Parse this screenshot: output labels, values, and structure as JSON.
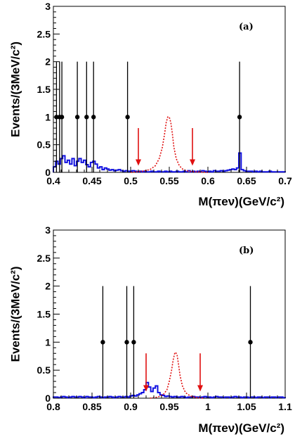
{
  "chart_data": [
    {
      "type": "histogram",
      "panel_label": "(a)",
      "xlabel": "M(πeν)(GeV/c²)",
      "ylabel": "Events/(3MeV/c²)",
      "xlim": [
        0.4,
        0.7
      ],
      "ylim": [
        0,
        3
      ],
      "x_ticks": [
        "0.4",
        "0.45",
        "0.5",
        "0.55",
        "0.6",
        "0.65",
        "0.7"
      ],
      "x_tick_values": [
        0.4,
        0.45,
        0.5,
        0.55,
        0.6,
        0.65,
        0.7
      ],
      "y_ticks": [
        "0",
        "0.5",
        "1",
        "1.5",
        "2",
        "2.5",
        "3"
      ],
      "y_tick_values": [
        0,
        0.5,
        1,
        1.5,
        2,
        2.5,
        3
      ],
      "data_points": {
        "x": [
          0.404,
          0.408,
          0.411,
          0.431,
          0.443,
          0.452,
          0.496,
          0.641
        ],
        "y": [
          1,
          1,
          1,
          1,
          1,
          1,
          1,
          1
        ],
        "err_lo": [
          1,
          1,
          1,
          1,
          1,
          1,
          1,
          1
        ],
        "err_hi": [
          1,
          1,
          1,
          1,
          1,
          1,
          1,
          1
        ]
      },
      "signal_mc": {
        "style": "red-dotted",
        "x": [
          0.5,
          0.515,
          0.525,
          0.532,
          0.537,
          0.541,
          0.544,
          0.546,
          0.548,
          0.55,
          0.552,
          0.554,
          0.556,
          0.559,
          0.563,
          0.568,
          0.575,
          0.585,
          0.6
        ],
        "y": [
          0.0,
          0.02,
          0.05,
          0.12,
          0.25,
          0.45,
          0.7,
          0.9,
          1.0,
          1.0,
          0.9,
          0.7,
          0.45,
          0.25,
          0.12,
          0.05,
          0.02,
          0.01,
          0.0
        ]
      },
      "background_mc": {
        "style": "blue-step",
        "bin_width": 0.003,
        "x_start": 0.4,
        "values": [
          0.1,
          0.2,
          0.15,
          0.25,
          0.3,
          0.18,
          0.22,
          0.15,
          0.25,
          0.12,
          0.2,
          0.25,
          0.18,
          0.22,
          0.14,
          0.1,
          0.18,
          0.2,
          0.15,
          0.08,
          0.1,
          0.05,
          0.08,
          0.06,
          0.04,
          0.05,
          0.03,
          0.04,
          0.05,
          0.03,
          0.02,
          0.03,
          0.02,
          0.02,
          0.03,
          0.02,
          0.01,
          0.02,
          0.01,
          0.02,
          0.01,
          0.01,
          0.02,
          0.01,
          0.01,
          0.02,
          0.01,
          0.01,
          0.02,
          0.01,
          0.02,
          0.01,
          0.01,
          0.02,
          0.01,
          0.01,
          0.02,
          0.01,
          0.03,
          0.01,
          0.02,
          0.01,
          0.02,
          0.01,
          0.03,
          0.02,
          0.01,
          0.02,
          0.01,
          0.03,
          0.02,
          0.02,
          0.03,
          0.02,
          0.03,
          0.04,
          0.05,
          0.06,
          0.05,
          0.08,
          0.35,
          0.05,
          0.03,
          0.02,
          0.02,
          0.02,
          0.01,
          0.02,
          0.01,
          0.02,
          0.01,
          0.01,
          0.01,
          0.02,
          0.01,
          0.01,
          0.01,
          0.01,
          0.01,
          0.01
        ]
      },
      "cut_arrows": [
        0.51,
        0.58
      ]
    },
    {
      "type": "histogram",
      "panel_label": "(b)",
      "xlabel": "M(πeν)(GeV/c²)",
      "ylabel": "Events/(3MeV/c²)",
      "xlim": [
        0.8,
        1.1
      ],
      "ylim": [
        0,
        3
      ],
      "x_ticks": [
        "0.8",
        "0.85",
        "0.9",
        "0.95",
        "1",
        "1.05",
        "1.1"
      ],
      "x_tick_values": [
        0.8,
        0.85,
        0.9,
        0.95,
        1.0,
        1.05,
        1.1
      ],
      "y_ticks": [
        "0",
        "0.5",
        "1",
        "1.5",
        "2",
        "2.5",
        "3"
      ],
      "y_tick_values": [
        0,
        0.5,
        1,
        1.5,
        2,
        2.5,
        3
      ],
      "data_points": {
        "x": [
          0.864,
          0.895,
          0.904,
          1.055
        ],
        "y": [
          1,
          1,
          1,
          1
        ],
        "err_lo": [
          1,
          1,
          1,
          1
        ],
        "err_hi": [
          1,
          1,
          1,
          1
        ]
      },
      "signal_mc": {
        "style": "red-dotted",
        "x": [
          0.925,
          0.935,
          0.942,
          0.947,
          0.95,
          0.953,
          0.955,
          0.957,
          0.958,
          0.96,
          0.962,
          0.964,
          0.967,
          0.971,
          0.977,
          0.985,
          0.995
        ],
        "y": [
          0.0,
          0.02,
          0.06,
          0.15,
          0.3,
          0.5,
          0.68,
          0.8,
          0.82,
          0.78,
          0.6,
          0.4,
          0.22,
          0.1,
          0.04,
          0.01,
          0.0
        ]
      },
      "background_mc": {
        "style": "blue-step",
        "bin_width": 0.003,
        "x_start": 0.8,
        "values": [
          0.02,
          0.02,
          0.01,
          0.02,
          0.03,
          0.02,
          0.01,
          0.02,
          0.03,
          0.02,
          0.02,
          0.03,
          0.02,
          0.01,
          0.03,
          0.02,
          0.02,
          0.01,
          0.02,
          0.03,
          0.02,
          0.01,
          0.02,
          0.02,
          0.03,
          0.02,
          0.01,
          0.02,
          0.03,
          0.02,
          0.02,
          0.03,
          0.02,
          0.04,
          0.05,
          0.04,
          0.06,
          0.08,
          0.1,
          0.15,
          0.28,
          0.2,
          0.12,
          0.18,
          0.22,
          0.1,
          0.06,
          0.05,
          0.03,
          0.04,
          0.03,
          0.02,
          0.03,
          0.02,
          0.02,
          0.03,
          0.02,
          0.01,
          0.02,
          0.02,
          0.03,
          0.02,
          0.02,
          0.01,
          0.02,
          0.03,
          0.02,
          0.02,
          0.01,
          0.02,
          0.03,
          0.02,
          0.02,
          0.01,
          0.02,
          0.02,
          0.01,
          0.02,
          0.03,
          0.02,
          0.02,
          0.01,
          0.02,
          0.02,
          0.01,
          0.02,
          0.02,
          0.01,
          0.02,
          0.02,
          0.01,
          0.02,
          0.02,
          0.01,
          0.02,
          0.02,
          0.01,
          0.02,
          0.02,
          0.01
        ]
      },
      "cut_arrows": [
        0.92,
        0.99
      ]
    }
  ]
}
